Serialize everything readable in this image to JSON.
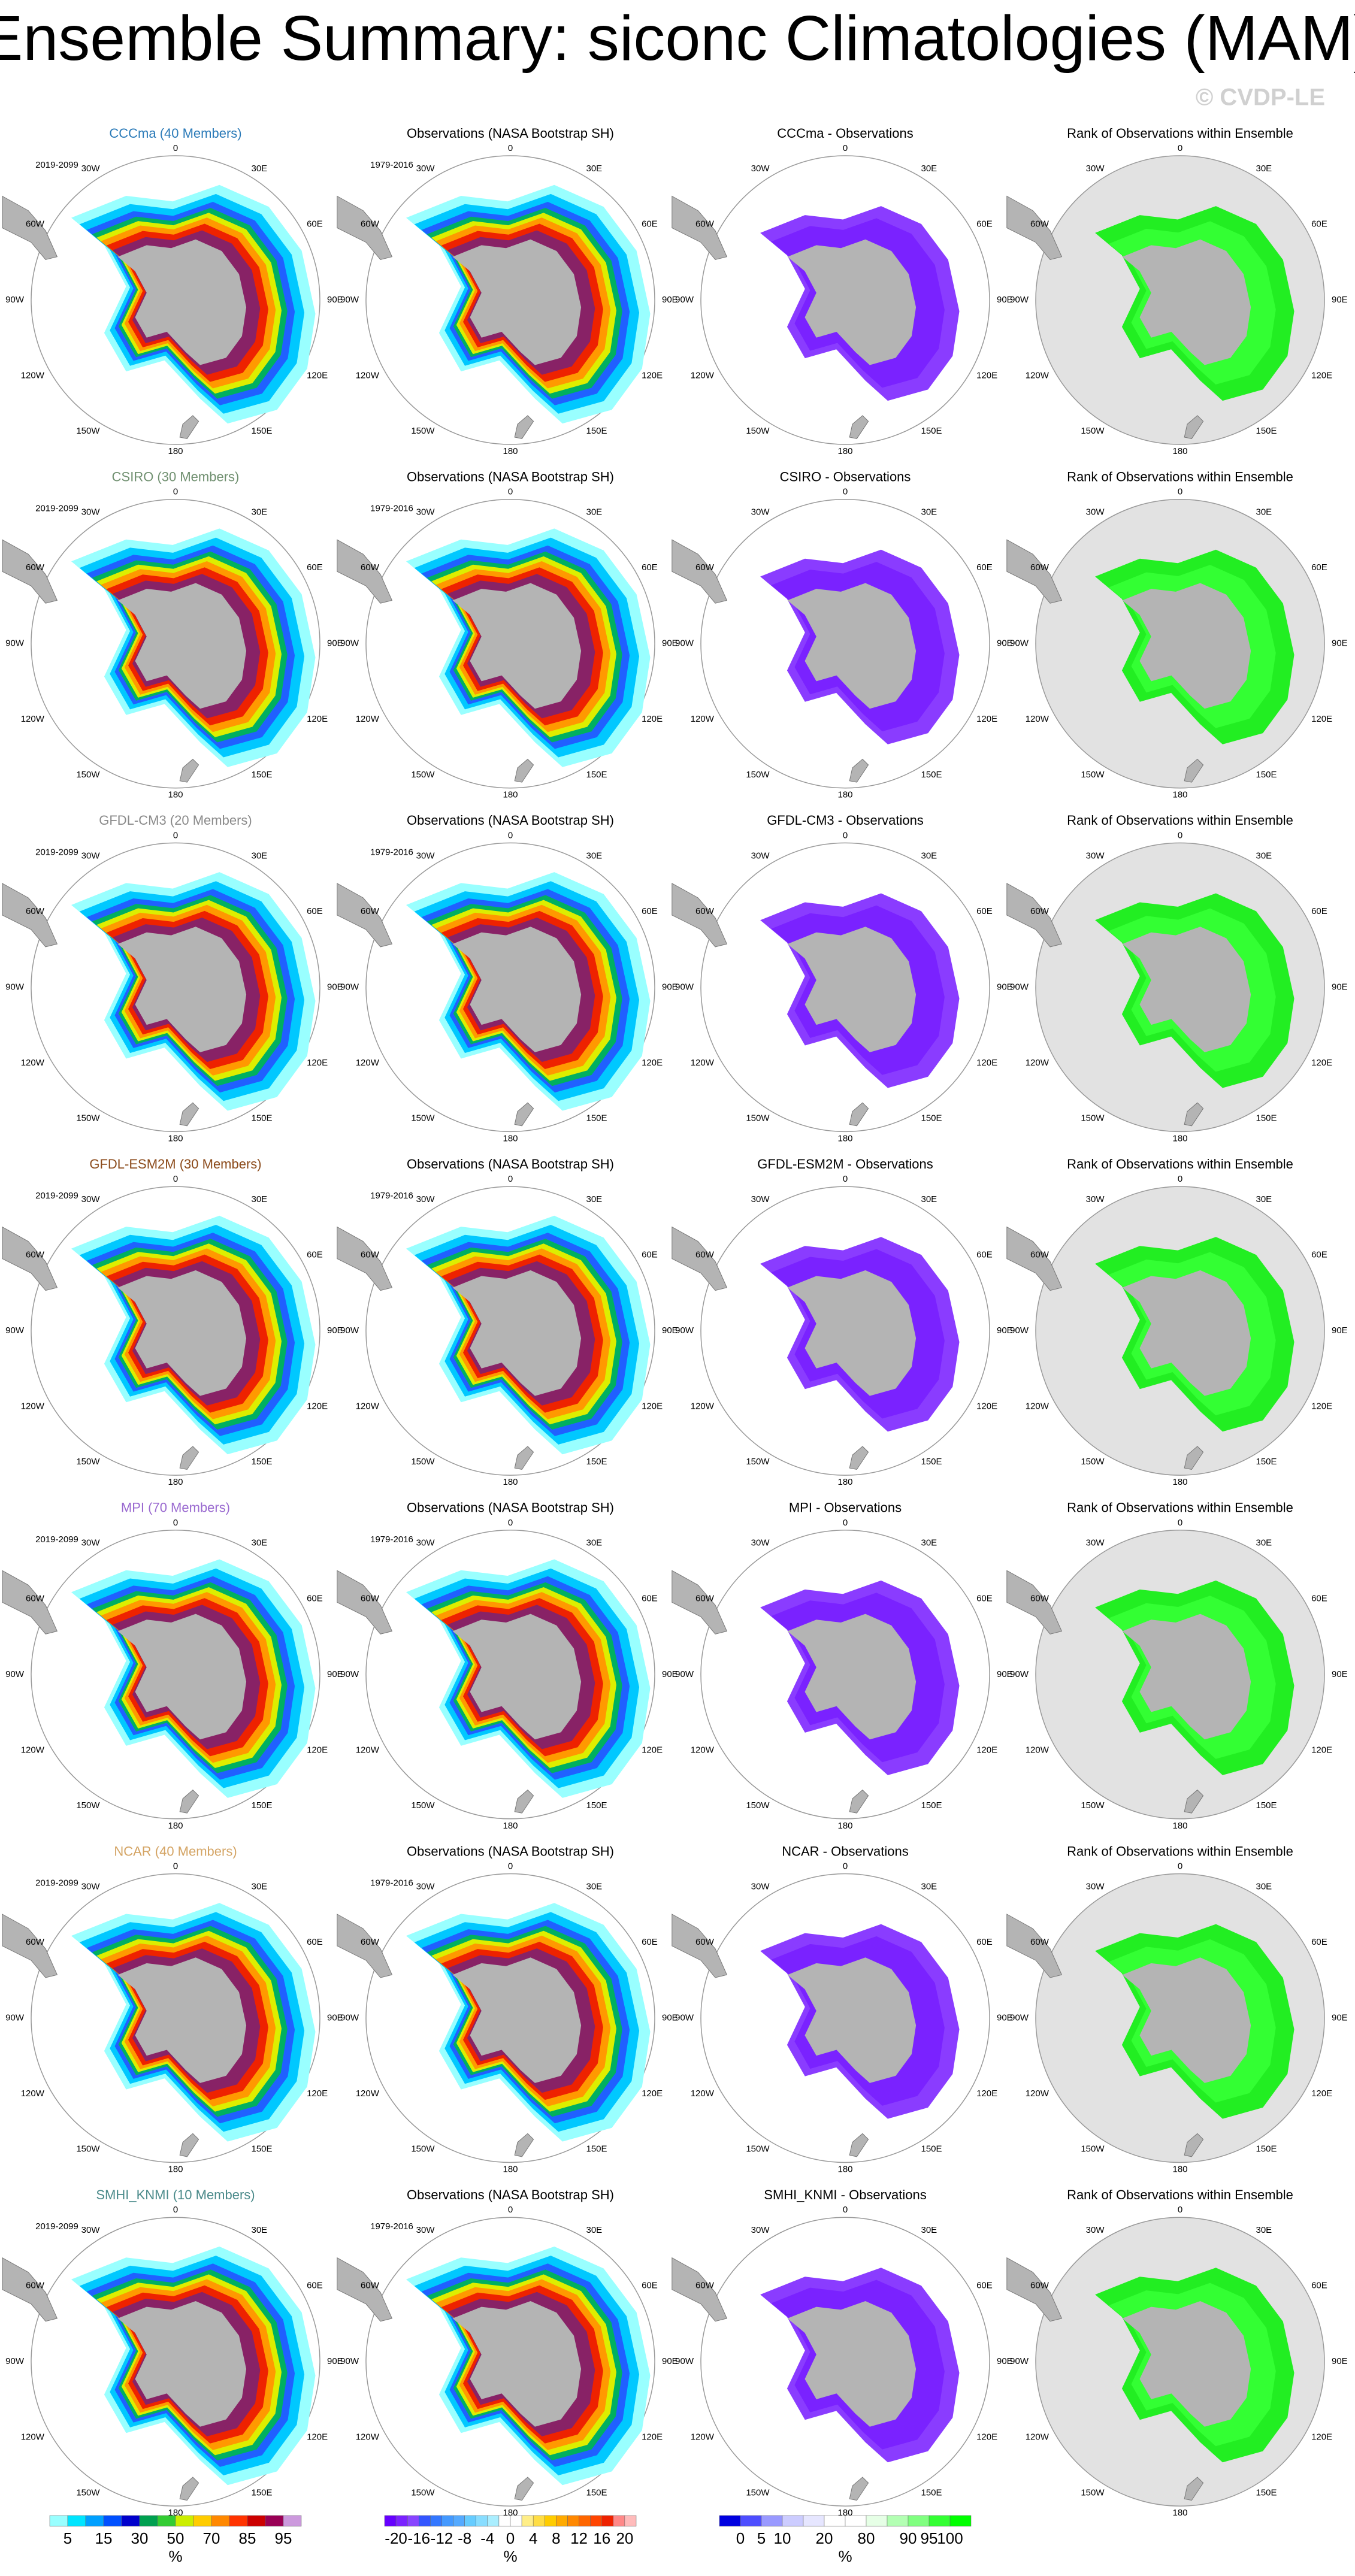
{
  "title": "Ensemble Summary: siconc Climatologies (MAM)",
  "watermark": "© CVDP-LE",
  "longitude_labels": [
    "0",
    "30E",
    "60E",
    "90E",
    "120E",
    "150E",
    "180",
    "150W",
    "120W",
    "90W",
    "60W",
    "30W"
  ],
  "rows": [
    {
      "model_title": "CCCma (40 Members)",
      "model_color": "#2a7ab8",
      "model_period": "2019-2099",
      "obs_title": "Observations (NASA Bootstrap SH)",
      "obs_period": "1979-2016",
      "diff_title": "CCCma - Observations",
      "rank_title": "Rank of Observations within Ensemble"
    },
    {
      "model_title": "CSIRO (30 Members)",
      "model_color": "#6f8f6f",
      "model_period": "2019-2099",
      "obs_title": "Observations (NASA Bootstrap SH)",
      "obs_period": "1979-2016",
      "diff_title": "CSIRO - Observations",
      "rank_title": "Rank of Observations within Ensemble"
    },
    {
      "model_title": "GFDL-CM3 (20 Members)",
      "model_color": "#8a8a8a",
      "model_period": "2019-2099",
      "obs_title": "Observations (NASA Bootstrap SH)",
      "obs_period": "1979-2016",
      "diff_title": "GFDL-CM3 - Observations",
      "rank_title": "Rank of Observations within Ensemble"
    },
    {
      "model_title": "GFDL-ESM2M (30 Members)",
      "model_color": "#8b4a1a",
      "model_period": "2019-2099",
      "obs_title": "Observations (NASA Bootstrap SH)",
      "obs_period": "1979-2016",
      "diff_title": "GFDL-ESM2M - Observations",
      "rank_title": "Rank of Observations within Ensemble"
    },
    {
      "model_title": "MPI (70 Members)",
      "model_color": "#9a6ad0",
      "model_period": "2019-2099",
      "obs_title": "Observations (NASA Bootstrap SH)",
      "obs_period": "1979-2016",
      "diff_title": "MPI - Observations",
      "rank_title": "Rank of Observations within Ensemble"
    },
    {
      "model_title": "NCAR (40 Members)",
      "model_color": "#d4a464",
      "model_period": "2019-2099",
      "obs_title": "Observations (NASA Bootstrap SH)",
      "obs_period": "1979-2016",
      "diff_title": "NCAR - Observations",
      "rank_title": "Rank of Observations within Ensemble"
    },
    {
      "model_title": "SMHI_KNMI (10 Members)",
      "model_color": "#4a8a8a",
      "model_period": "2019-2099",
      "obs_title": "Observations (NASA Bootstrap SH)",
      "obs_period": "1979-2016",
      "diff_title": "SMHI_KNMI - Observations",
      "rank_title": "Rank of Observations within Ensemble"
    }
  ],
  "colorbars": [
    {
      "colors": [
        "#99ffff",
        "#00e5ff",
        "#00a0ff",
        "#0050ff",
        "#0000cc",
        "#00a050",
        "#33cc33",
        "#ccee00",
        "#ffcc00",
        "#ff8800",
        "#ff3300",
        "#cc0000",
        "#990055",
        "#cc99dd"
      ],
      "ticks": [
        5,
        15,
        30,
        50,
        70,
        85,
        95
      ],
      "unit": "%"
    },
    {
      "colors": [
        "#6600ff",
        "#7a22ff",
        "#8844ff",
        "#3355ff",
        "#3377ff",
        "#4499ff",
        "#55aaff",
        "#66ccff",
        "#88ddff",
        "#aaeeff",
        "#ffffff",
        "#ffffff",
        "#ffee88",
        "#ffdd44",
        "#ffcc00",
        "#ffaa00",
        "#ff8800",
        "#ff6600",
        "#ff4400",
        "#ee2200",
        "#ff8888",
        "#ffbbbb"
      ],
      "ticks": [
        -20,
        -16,
        -12,
        -8,
        -4,
        0,
        4,
        8,
        12,
        16,
        20
      ],
      "unit": "%"
    },
    {
      "colors": [
        "#0000e0",
        "#4d4dff",
        "#9999ff",
        "#ccccff",
        "#e6e6ff",
        "#ffffff",
        "#ffffff",
        "#e6ffe6",
        "#b3ffb3",
        "#80ff80",
        "#33ff33",
        "#00ff00"
      ],
      "ticks": [
        0,
        5,
        10,
        20,
        80,
        90,
        95,
        100
      ],
      "unit": "%"
    }
  ]
}
